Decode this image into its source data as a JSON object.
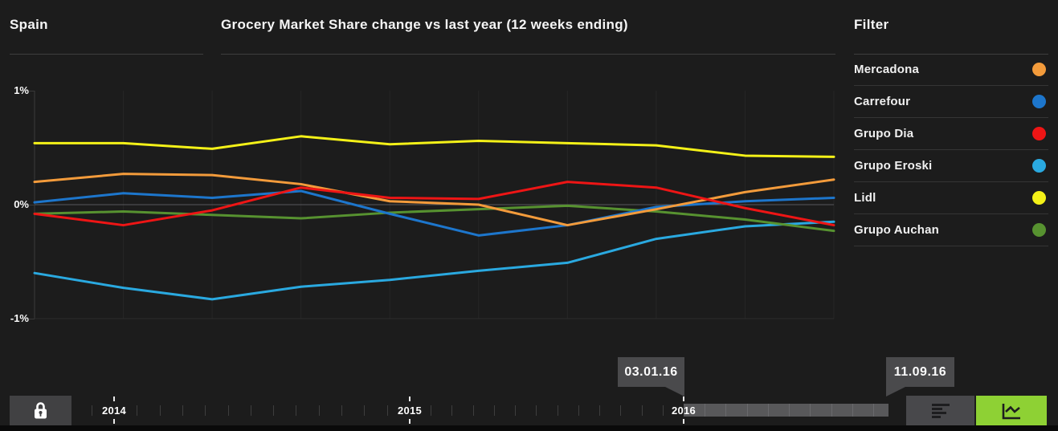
{
  "header": {
    "region": "Spain",
    "title": "Grocery Market Share change vs last year (12 weeks ending)",
    "filter_title": "Filter"
  },
  "legend": [
    {
      "label": "Mercadona",
      "color": "#f39b3b"
    },
    {
      "label": "Carrefour",
      "color": "#1d76cc"
    },
    {
      "label": "Grupo Dia",
      "color": "#ee1515"
    },
    {
      "label": "Grupo Eroski",
      "color": "#2aa9e0"
    },
    {
      "label": "Lidl",
      "color": "#f4f118"
    },
    {
      "label": "Grupo Auchan",
      "color": "#579230"
    }
  ],
  "chart_data": {
    "type": "line",
    "title": "Grocery Market Share change vs last year (12 weeks ending)",
    "region": "Spain",
    "ylim": [
      -1,
      1
    ],
    "yticks": [
      {
        "label": "1%",
        "value": 1
      },
      {
        "label": "0%",
        "value": 0
      },
      {
        "label": "-1%",
        "value": -1
      }
    ],
    "x_point_count": 10,
    "x_range": {
      "first": "03.01.16",
      "last": "11.09.16"
    },
    "grid": {
      "vertical": true,
      "zero_line": true
    },
    "legend_position": "right",
    "series": [
      {
        "name": "Mercadona",
        "color": "#f39b3b",
        "values": [
          0.2,
          0.27,
          0.26,
          0.18,
          0.03,
          0.0,
          -0.18,
          -0.04,
          0.11,
          0.22
        ]
      },
      {
        "name": "Carrefour",
        "color": "#1d76cc",
        "values": [
          0.02,
          0.1,
          0.06,
          0.12,
          -0.08,
          -0.27,
          -0.18,
          -0.02,
          0.03,
          0.06
        ]
      },
      {
        "name": "Grupo Dia",
        "color": "#ee1515",
        "values": [
          -0.08,
          -0.18,
          -0.05,
          0.15,
          0.06,
          0.05,
          0.2,
          0.15,
          -0.03,
          -0.18
        ]
      },
      {
        "name": "Grupo Eroski",
        "color": "#2aa9e0",
        "values": [
          -0.6,
          -0.73,
          -0.83,
          -0.72,
          -0.66,
          -0.58,
          -0.51,
          -0.3,
          -0.19,
          -0.15
        ]
      },
      {
        "name": "Lidl",
        "color": "#f4f118",
        "values": [
          0.54,
          0.54,
          0.49,
          0.6,
          0.53,
          0.56,
          0.54,
          0.52,
          0.43,
          0.42
        ]
      },
      {
        "name": "Grupo Auchan",
        "color": "#579230",
        "values": [
          -0.08,
          -0.06,
          -0.09,
          -0.12,
          -0.07,
          -0.04,
          -0.01,
          -0.06,
          -0.13,
          -0.23
        ]
      }
    ]
  },
  "timeline": {
    "years": [
      "2014",
      "2015",
      "2016"
    ],
    "range_start": "03.01.16",
    "range_end": "11.09.16"
  },
  "controls": {
    "lock_icon": "lock-icon",
    "list_view_icon": "list-bars-icon",
    "chart_view_icon": "line-chart-icon",
    "accent_green": "#8ed134"
  }
}
